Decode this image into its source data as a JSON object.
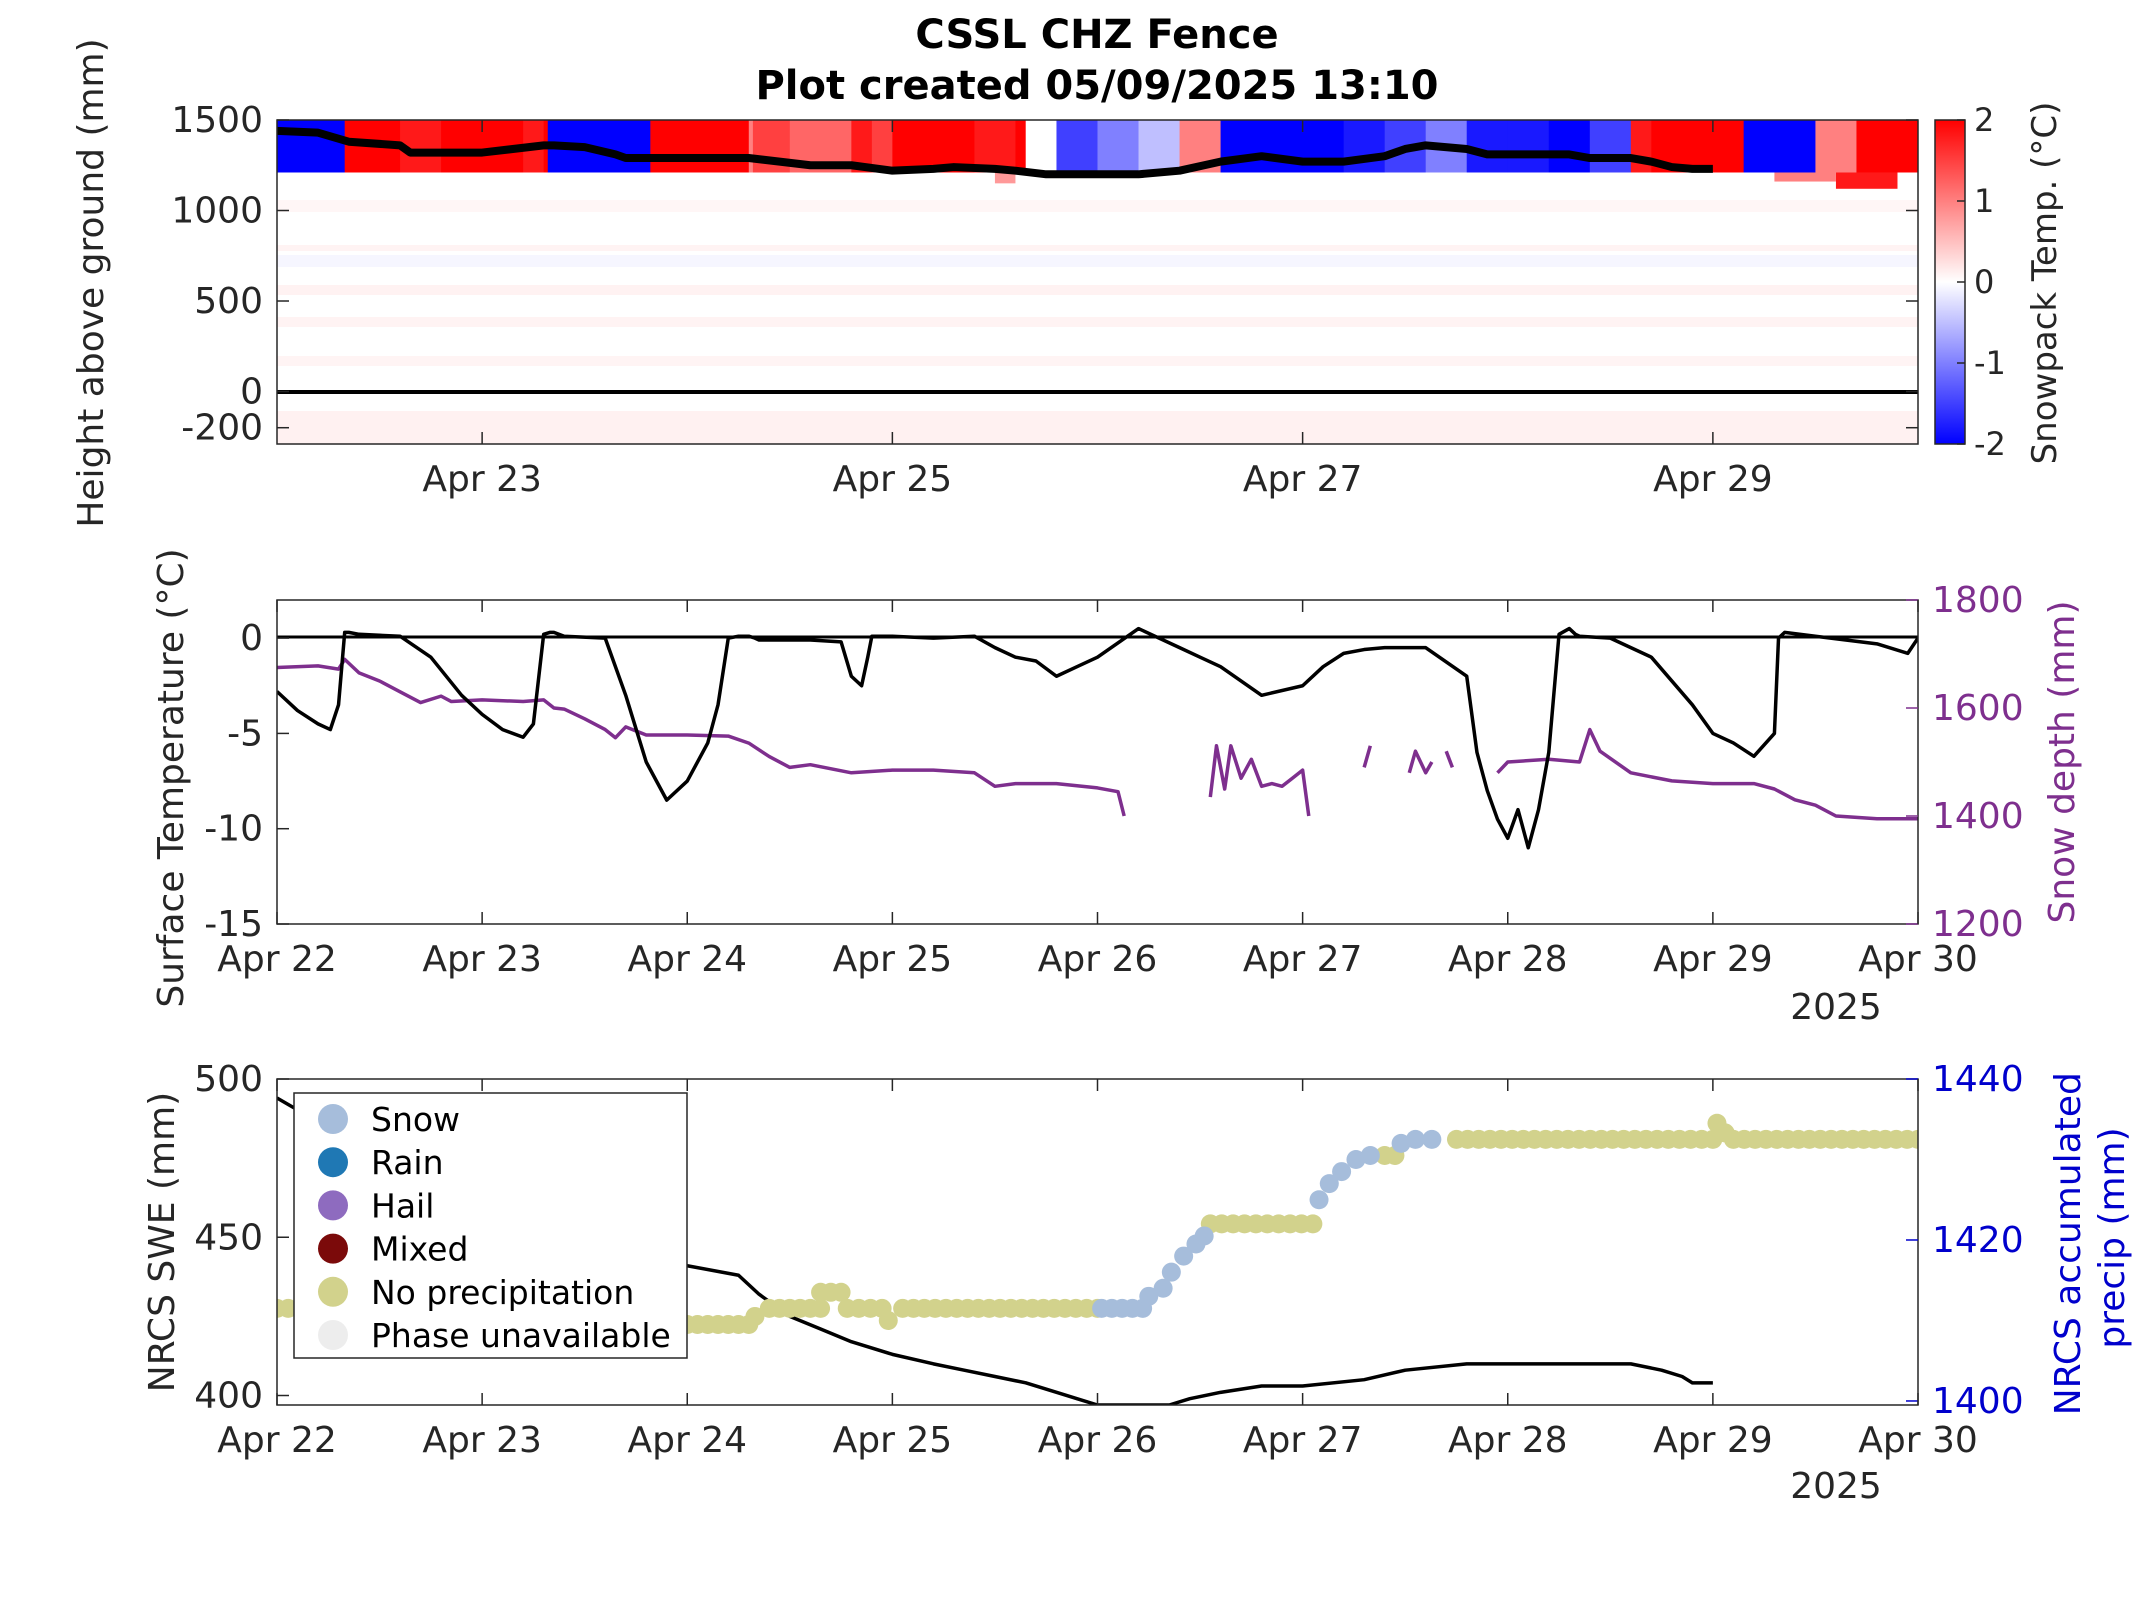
{
  "title": "CSSL CHZ Fence",
  "subtitle": "Plot created 05/09/2025 13:10",
  "colors": {
    "axis": "#262626",
    "snowline": "#000000",
    "surface_temp": "#000000",
    "snow_depth": "#7E2F8E",
    "precip_axis": "#0000CC",
    "snow": "#A6BDDB",
    "rain": "#1F78B4",
    "hail": "#8E6BBF",
    "mixed": "#7B0A0A",
    "no_precip": "#D2D28C",
    "phase_unavailable": "#EDEDED",
    "cold": "#0000FF",
    "warm": "#FF0000"
  },
  "chart_data": [
    {
      "type": "heatmap",
      "ylabel": "Height above ground (mm)",
      "colorbar_label": "Snowpack Temp. (°C)",
      "colorbar_ticks": [
        "2",
        "1",
        "0",
        "-1",
        "-2"
      ],
      "clim": [
        -2,
        2
      ],
      "y_ticks": [
        "1500",
        "1000",
        "500",
        "0",
        "-200"
      ],
      "y_tick_values": [
        1500,
        1000,
        500,
        0,
        -200
      ],
      "ylim": [
        -290,
        1500
      ],
      "x_ticks": [
        "Apr 23",
        "Apr 25",
        "Apr 27",
        "Apr 29"
      ],
      "x_tick_days": [
        1,
        3,
        5,
        7
      ],
      "xlim_days": [
        0,
        8
      ],
      "top_layer_temps": {
        "x_days": [
          0,
          0.3,
          0.33,
          0.45,
          0.6,
          0.8,
          1.0,
          1.2,
          1.3,
          1.32,
          1.5,
          1.7,
          1.8,
          1.82,
          1.9,
          2.1,
          2.3,
          2.32,
          2.5,
          2.8,
          2.9,
          3.0,
          3.2,
          3.4,
          3.6,
          3.65,
          3.8,
          4.0,
          4.2,
          4.4,
          4.6,
          4.8,
          5.0,
          5.2,
          5.4,
          5.6,
          5.8,
          6.0,
          6.2,
          6.4,
          6.6,
          6.7,
          6.8,
          7.0,
          7.15,
          7.3,
          7.5,
          7.7,
          8.0
        ],
        "temps_c": [
          -2,
          -2,
          2,
          2,
          1.8,
          2,
          2,
          1.8,
          2,
          -2,
          -2,
          -2,
          -2,
          2,
          2,
          2,
          1,
          1.5,
          1.2,
          1.8,
          1.5,
          2,
          2,
          1.8,
          2,
          0,
          -1.5,
          -1,
          -0.5,
          1,
          -2,
          -2,
          -2,
          -1.8,
          -1.5,
          -1,
          -1.8,
          -1.8,
          -2,
          -1.5,
          1.8,
          2,
          2,
          2,
          -2,
          -2,
          1,
          2,
          2
        ]
      },
      "snow_surface": {
        "x_days": [
          0,
          0.2,
          0.35,
          0.6,
          0.65,
          1.0,
          1.3,
          1.35,
          1.5,
          1.65,
          1.7,
          2.0,
          2.3,
          2.45,
          2.6,
          2.8,
          3.0,
          3.2,
          3.3,
          3.5,
          3.6,
          3.75,
          4.0,
          4.2,
          4.4,
          4.6,
          4.8,
          5.0,
          5.2,
          5.4,
          5.5,
          5.6,
          5.8,
          5.9,
          6.0,
          6.3,
          6.4,
          6.6,
          6.7,
          6.8,
          6.9,
          7.0
        ],
        "height_mm": [
          1440,
          1430,
          1380,
          1360,
          1320,
          1320,
          1360,
          1360,
          1350,
          1310,
          1290,
          1290,
          1290,
          1270,
          1250,
          1250,
          1220,
          1230,
          1240,
          1230,
          1220,
          1200,
          1200,
          1200,
          1220,
          1270,
          1300,
          1270,
          1270,
          1300,
          1340,
          1360,
          1340,
          1310,
          1310,
          1310,
          1290,
          1290,
          1270,
          1240,
          1230,
          1230
        ]
      }
    },
    {
      "type": "line",
      "ylabel": "Surface Temperature (°C)",
      "y2label": "Snow depth (mm)",
      "y_ticks": [
        "0",
        "-5",
        "-10",
        "-15"
      ],
      "ylim": [
        -15,
        2
      ],
      "y2_ticks": [
        "1800",
        "1600",
        "1400",
        "1200"
      ],
      "y2lim": [
        1200,
        1800
      ],
      "x_ticks": [
        "Apr 22",
        "Apr 23",
        "Apr 24",
        "Apr 25",
        "Apr 26",
        "Apr 27",
        "Apr 28",
        "Apr 29",
        "Apr 30"
      ],
      "xlim_days": [
        0,
        8
      ],
      "year_label": "2025",
      "series": [
        {
          "x_days": [
            0,
            0.1,
            0.2,
            0.26,
            0.3,
            0.33,
            0.35,
            0.4,
            0.6,
            0.75,
            0.9,
            1.0,
            1.1,
            1.2,
            1.25,
            1.3,
            1.33,
            1.35,
            1.4,
            1.6,
            1.7,
            1.8,
            1.9,
            2.0,
            2.1,
            2.15,
            2.2,
            2.25,
            2.3,
            2.33,
            2.35,
            2.6,
            2.75,
            2.8,
            2.85,
            2.88,
            2.9,
            3.0,
            3.2,
            3.4,
            3.5,
            3.6,
            3.7,
            3.8,
            3.9,
            4.0,
            4.2,
            4.4,
            4.5,
            4.6,
            4.8,
            5.0,
            5.1,
            5.2,
            5.3,
            5.4,
            5.6,
            5.8,
            5.85,
            5.9,
            5.95,
            6.0,
            6.05,
            6.1,
            6.15,
            6.2,
            6.25,
            6.3,
            6.33,
            6.35,
            6.5,
            6.7,
            6.9,
            7.0,
            7.1,
            7.2,
            7.3,
            7.32,
            7.35,
            7.5,
            7.8,
            7.95,
            8.0
          ],
          "y_values": [
            -2.8,
            -3.8,
            -4.5,
            -4.8,
            -3.5,
            0.3,
            0.3,
            0.2,
            0.1,
            -1.0,
            -3.0,
            -4.0,
            -4.8,
            -5.2,
            -4.5,
            0.2,
            0.3,
            0.3,
            0.1,
            0.0,
            -3.0,
            -6.5,
            -8.5,
            -7.5,
            -5.5,
            -3.5,
            0.0,
            0.1,
            0.1,
            0.0,
            -0.1,
            -0.1,
            -0.2,
            -2.0,
            -2.5,
            -1.0,
            0.1,
            0.1,
            0.0,
            0.1,
            -0.5,
            -1.0,
            -1.2,
            -2.0,
            -1.5,
            -1.0,
            0.5,
            -0.5,
            -1.0,
            -1.5,
            -3.0,
            -2.5,
            -1.5,
            -0.8,
            -0.6,
            -0.5,
            -0.5,
            -2.0,
            -6.0,
            -8.0,
            -9.5,
            -10.5,
            -9.0,
            -11.0,
            -9.0,
            -6.0,
            0.2,
            0.5,
            0.2,
            0.1,
            0.0,
            -1.0,
            -3.5,
            -5.0,
            -5.5,
            -6.2,
            -5.0,
            0.0,
            0.3,
            0.1,
            -0.3,
            -0.8,
            0.0
          ]
        },
        {
          "axis": "right",
          "segments": [
            {
              "x_days": [
                0,
                0.2,
                0.3,
                0.33,
                0.4,
                0.5,
                0.6,
                0.7,
                0.8,
                0.85,
                1.0,
                1.2,
                1.3,
                1.35,
                1.4,
                1.5,
                1.6,
                1.65,
                1.7,
                1.8,
                2.0,
                2.2,
                2.3,
                2.4,
                2.5,
                2.6,
                2.8,
                3.0,
                3.2,
                3.4,
                3.5,
                3.6,
                3.8,
                4.0,
                4.1,
                4.13
              ],
              "y_values": [
                1675,
                1678,
                1672,
                1690,
                1665,
                1650,
                1630,
                1610,
                1622,
                1612,
                1615,
                1612,
                1615,
                1600,
                1598,
                1580,
                1560,
                1545,
                1565,
                1550,
                1550,
                1548,
                1535,
                1510,
                1490,
                1495,
                1480,
                1485,
                1485,
                1480,
                1455,
                1460,
                1460,
                1452,
                1445,
                1400
              ]
            },
            {
              "x_days": [
                4.55,
                4.58,
                4.62,
                4.65,
                4.7,
                4.75,
                4.8,
                4.85,
                4.9,
                4.95,
                5.0,
                5.03
              ],
              "y_values": [
                1435,
                1530,
                1450,
                1530,
                1470,
                1505,
                1455,
                1460,
                1455,
                1470,
                1485,
                1400
              ]
            },
            {
              "x_days": [
                5.3,
                5.33
              ],
              "y_values": [
                1490,
                1530
              ]
            },
            {
              "x_days": [
                5.52,
                5.55,
                5.6,
                5.63
              ],
              "y_values": [
                1480,
                1520,
                1480,
                1500
              ]
            },
            {
              "x_days": [
                5.7,
                5.73
              ],
              "y_values": [
                1520,
                1490
              ]
            },
            {
              "x_days": [
                5.95,
                6.0,
                6.2,
                6.35,
                6.4,
                6.45,
                6.6,
                6.8,
                7.0,
                7.2,
                7.3,
                7.4,
                7.5,
                7.6,
                7.8,
                8.0
              ],
              "y_values": [
                1480,
                1500,
                1505,
                1500,
                1560,
                1520,
                1480,
                1465,
                1460,
                1460,
                1450,
                1430,
                1420,
                1400,
                1395,
                1395
              ]
            }
          ]
        }
      ]
    },
    {
      "type": "scatter",
      "ylabel": "NRCS SWE (mm)",
      "y2label": "NRCS accumulated precip (mm)",
      "y_ticks": [
        "500",
        "450",
        "400"
      ],
      "ylim": [
        397,
        500
      ],
      "y2_ticks": [
        "1440",
        "1420",
        "1400"
      ],
      "y2lim": [
        1399.5,
        1440
      ],
      "x_ticks": [
        "Apr 22",
        "Apr 23",
        "Apr 24",
        "Apr 25",
        "Apr 26",
        "Apr 27",
        "Apr 28",
        "Apr 29",
        "Apr 30"
      ],
      "xlim_days": [
        0,
        8
      ],
      "year_label": "2025",
      "legend": [
        {
          "label": "Snow",
          "color_key": "snow"
        },
        {
          "label": "Rain",
          "color_key": "rain"
        },
        {
          "label": "Hail",
          "color_key": "hail"
        },
        {
          "label": "Mixed",
          "color_key": "mixed"
        },
        {
          "label": "No precipitation",
          "color_key": "no_precip"
        },
        {
          "label": "Phase unavailable",
          "color_key": "phase_unavailable"
        }
      ],
      "legend_location": "top-left",
      "swe": {
        "x_days": [
          0,
          0.08,
          2.0,
          2.25,
          2.35,
          2.5,
          2.65,
          2.8,
          3.0,
          3.2,
          3.35,
          3.5,
          3.65,
          3.8,
          3.9,
          4.0,
          4.35,
          4.45,
          4.6,
          4.8,
          5.0,
          5.3,
          5.5,
          5.8,
          6.0,
          6.2,
          6.35,
          6.6,
          6.75,
          6.85,
          6.9,
          7.0
        ],
        "y_values": [
          494,
          491,
          441,
          438,
          432,
          425,
          421,
          417,
          413,
          410,
          408,
          406,
          404,
          401,
          399,
          397,
          397,
          399,
          401,
          403,
          403,
          405,
          408,
          410,
          410,
          410,
          410,
          410,
          408,
          406,
          404,
          404
        ]
      },
      "precip": {
        "segments": [
          {
            "phase": "no_precip",
            "x_days": [
              0.0,
              0.6
            ],
            "y": 1411.5
          },
          {
            "phase": "no_precip",
            "x_days": [
              2.0,
              2.3
            ],
            "y": 1409.5
          },
          {
            "phase": "no_precip",
            "x_days": [
              2.4,
              2.65
            ],
            "y": 1411.5
          },
          {
            "phase": "no_precip",
            "x_days": [
              2.65,
              2.75
            ],
            "y": 1413.5
          },
          {
            "phase": "no_precip",
            "x_days": [
              2.78,
              2.95
            ],
            "y": 1411.5
          },
          {
            "phase": "no_precip",
            "x_days": [
              3.05,
              4.0
            ],
            "y": 1411.5
          },
          {
            "phase": "snow",
            "x_days": [
              4.02,
              4.22
            ],
            "y": 1411.5
          },
          {
            "phase": "no_precip",
            "x_days": [
              4.55,
              5.05
            ],
            "y": 1422.0
          },
          {
            "phase": "no_precip",
            "x_days": [
              5.4,
              5.45
            ],
            "y": 1430.5
          },
          {
            "phase": "no_precip",
            "x_days": [
              5.75,
              7.0
            ],
            "y": 1432.5
          },
          {
            "phase": "no_precip",
            "x_days": [
              7.1,
              8.0
            ],
            "y": 1432.5
          }
        ],
        "points": [
          {
            "phase": "no_precip",
            "x": 2.33,
            "y": 1410.5
          },
          {
            "phase": "no_precip",
            "x": 2.98,
            "y": 1410.0
          },
          {
            "phase": "snow",
            "x": 4.25,
            "y": 1413.0
          },
          {
            "phase": "snow",
            "x": 4.32,
            "y": 1414.0
          },
          {
            "phase": "snow",
            "x": 4.36,
            "y": 1416.0
          },
          {
            "phase": "snow",
            "x": 4.42,
            "y": 1418.0
          },
          {
            "phase": "snow",
            "x": 4.48,
            "y": 1419.5
          },
          {
            "phase": "snow",
            "x": 4.52,
            "y": 1420.5
          },
          {
            "phase": "snow",
            "x": 5.08,
            "y": 1425.0
          },
          {
            "phase": "snow",
            "x": 5.13,
            "y": 1427.0
          },
          {
            "phase": "snow",
            "x": 5.19,
            "y": 1428.5
          },
          {
            "phase": "snow",
            "x": 5.26,
            "y": 1430.0
          },
          {
            "phase": "snow",
            "x": 5.33,
            "y": 1430.5
          },
          {
            "phase": "snow",
            "x": 5.48,
            "y": 1432.0
          },
          {
            "phase": "snow",
            "x": 5.55,
            "y": 1432.5
          },
          {
            "phase": "snow",
            "x": 5.63,
            "y": 1432.5
          },
          {
            "phase": "no_precip",
            "x": 7.02,
            "y": 1434.5
          },
          {
            "phase": "no_precip",
            "x": 7.06,
            "y": 1433.3
          }
        ]
      }
    }
  ]
}
